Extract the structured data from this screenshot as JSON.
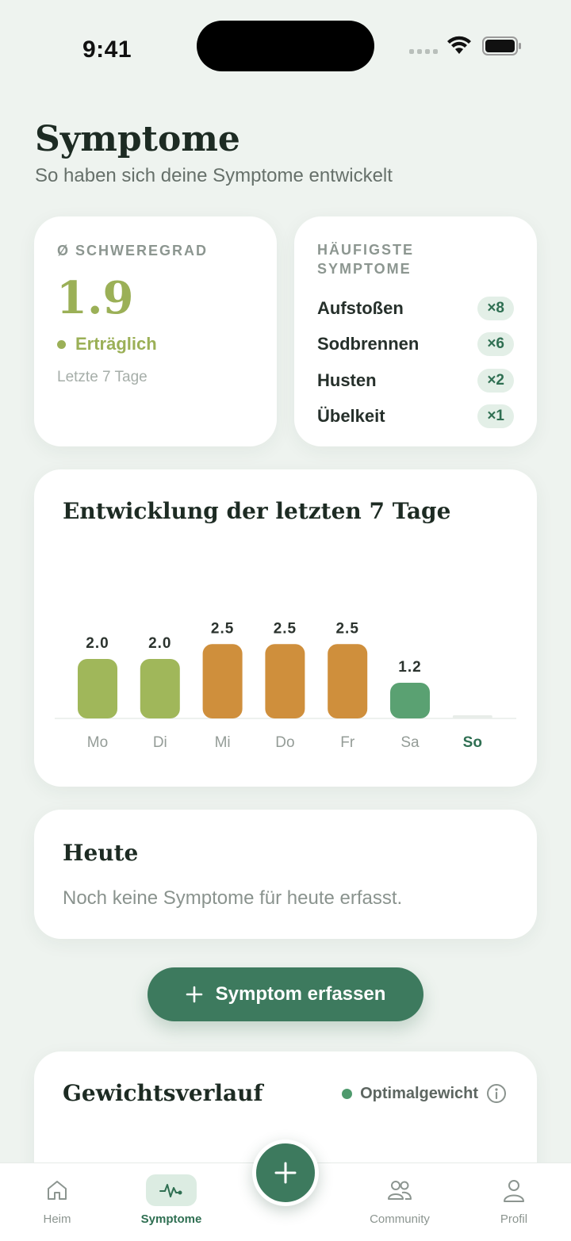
{
  "status_bar": {
    "time": "9:41"
  },
  "header": {
    "title": "Symptome",
    "subtitle": "So haben sich deine Symptome entwickelt"
  },
  "severity_card": {
    "label": "Ø SCHWEREGRAD",
    "value": "1.9",
    "status": "Erträglich",
    "period": "Letzte 7 Tage",
    "status_color": "#9bb057"
  },
  "frequent_card": {
    "label": "HÄUFIGSTE SYMPTOME",
    "items": [
      {
        "name": "Aufstoßen",
        "count": "×8"
      },
      {
        "name": "Sodbrennen",
        "count": "×6"
      },
      {
        "name": "Husten",
        "count": "×2"
      },
      {
        "name": "Übelkeit",
        "count": "×1"
      }
    ]
  },
  "chart_card": {
    "title": "Entwicklung der letzten 7 Tage"
  },
  "chart_data": {
    "type": "bar",
    "title": "Entwicklung der letzten 7 Tage",
    "categories": [
      "Mo",
      "Di",
      "Mi",
      "Do",
      "Fr",
      "Sa",
      "So"
    ],
    "values": [
      2.0,
      2.0,
      2.5,
      2.5,
      2.5,
      1.2,
      null
    ],
    "value_labels": [
      "2.0",
      "2.0",
      "2.5",
      "2.5",
      "2.5",
      "1.2",
      ""
    ],
    "colors": [
      "#a0b75a",
      "#a0b75a",
      "#cf8f3c",
      "#cf8f3c",
      "#cf8f3c",
      "#5aa172",
      "#e8ede9"
    ],
    "highlight_category": "So",
    "grid": false
  },
  "today_card": {
    "title": "Heute",
    "text": "Noch keine Symptome für heute erfasst."
  },
  "add_button": {
    "label": "Symptom erfassen",
    "icon": "plus-icon"
  },
  "weight_card": {
    "title": "Gewichtsverlauf",
    "legend": "Optimalgewicht",
    "legend_color": "#4f9a6d",
    "info_icon": "info-icon"
  },
  "tab_bar": {
    "tabs": [
      {
        "label": "Heim",
        "icon": "home-icon"
      },
      {
        "label": "Symptome",
        "icon": "pulse-icon",
        "active": true
      },
      {
        "label": "Community",
        "icon": "community-icon"
      },
      {
        "label": "Profil",
        "icon": "profile-icon"
      }
    ],
    "fab_icon": "plus-icon"
  }
}
